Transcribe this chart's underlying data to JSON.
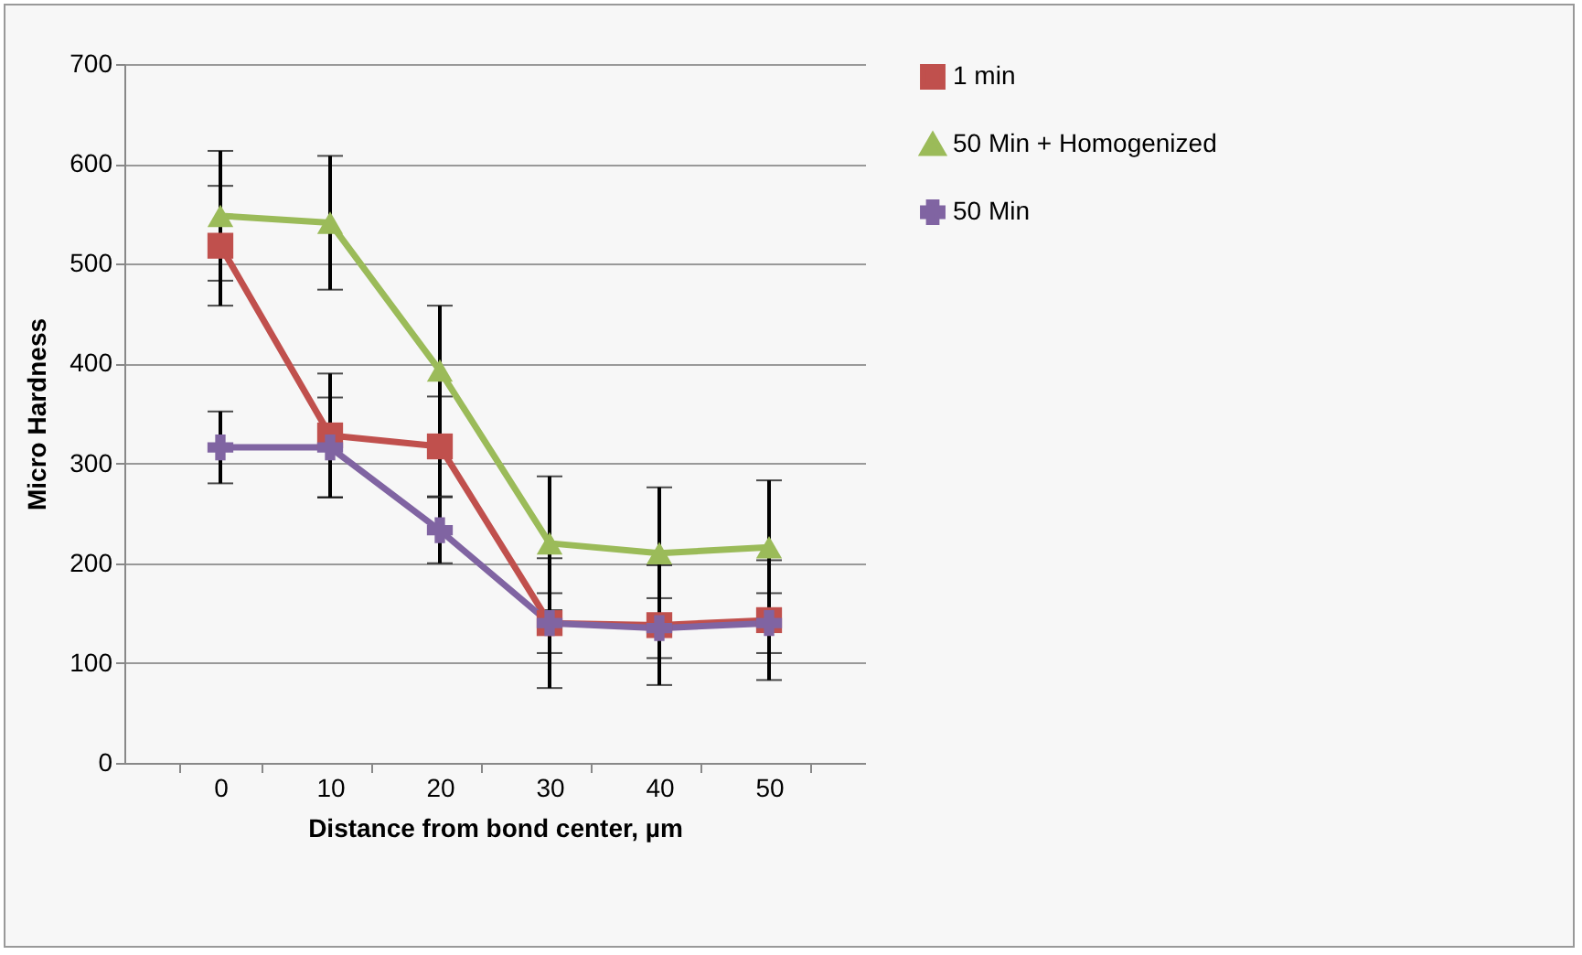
{
  "chart_data": {
    "type": "line",
    "xlabel": "Distance from bond center, µm",
    "ylabel": "Micro Hardness",
    "categories": [
      "0",
      "10",
      "20",
      "30",
      "40",
      "50"
    ],
    "series": [
      {
        "name": "1 min",
        "color": "#c0504d",
        "marker": "square",
        "values": [
          518,
          328,
          317,
          140,
          138,
          143
        ],
        "errors": [
          60,
          62,
          50,
          65,
          60,
          60
        ]
      },
      {
        "name": "50 Min + Homogenized",
        "color": "#9bbb59",
        "marker": "triangle",
        "values": [
          548,
          541,
          393,
          220,
          210,
          216
        ],
        "errors": [
          65,
          67,
          65,
          67,
          66,
          67
        ]
      },
      {
        "name": "50 Min",
        "color": "#8064a2",
        "marker": "cross",
        "values": [
          316,
          316,
          233,
          140,
          135,
          140
        ],
        "errors": [
          36,
          50,
          33,
          30,
          30,
          30
        ]
      }
    ],
    "ylim": [
      0,
      700
    ],
    "yticks": [
      0,
      100,
      200,
      300,
      400,
      500,
      600,
      700
    ],
    "grid": "y",
    "legend": "right"
  }
}
